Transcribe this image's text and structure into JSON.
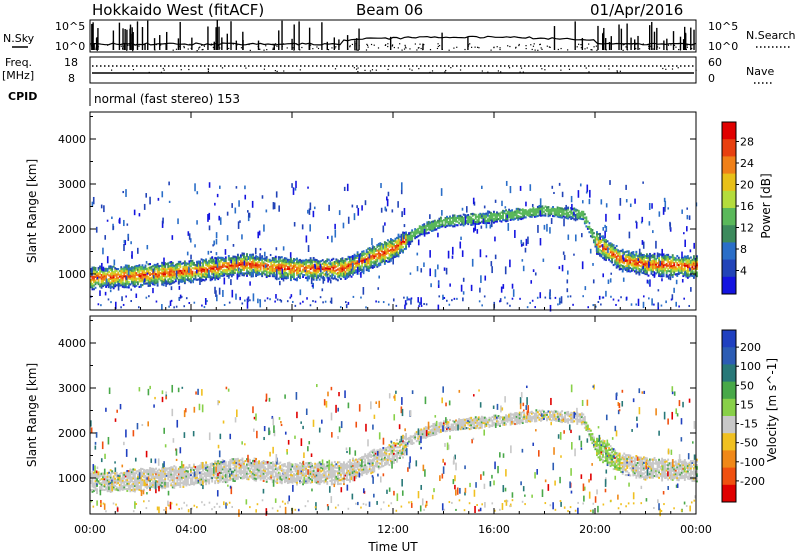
{
  "header": {
    "radar": "Hokkaido West (fitACF)",
    "beam": "Beam 06",
    "date": "01/Apr/2016"
  },
  "noise_panel": {
    "left_label": "N.Sky",
    "right_label": "N.Search",
    "left_ticks": [
      "10^5",
      "10^0"
    ],
    "right_ticks": [
      "10^5",
      "10^0"
    ]
  },
  "freq_panel": {
    "left_label_1": "Freq.",
    "left_label_2": "[MHz]",
    "right_label": "Nave",
    "left_ticks": [
      "18",
      "8"
    ],
    "right_ticks": [
      "60",
      "0"
    ]
  },
  "cpid": {
    "label": "CPID",
    "text": "normal (fast stereo) 153"
  },
  "chart_data": [
    {
      "type": "heatmap",
      "title": "Power",
      "ylabel": "Slant Range [km]",
      "xlabel": "Time UT",
      "x_range_hours": [
        0,
        24
      ],
      "ylim": [
        200,
        4600
      ],
      "y_ticks": [
        1000,
        2000,
        3000,
        4000
      ],
      "x_tick_labels": [
        "00:00",
        "04:00",
        "08:00",
        "12:00",
        "16:00",
        "20:00",
        "00:00"
      ],
      "colorbar_label": "Power [dB]",
      "colorbar_ticks": [
        "4",
        "8",
        "12",
        "16",
        "20",
        "24",
        "28"
      ],
      "colorbar_colors": [
        "#1414e0",
        "#2244b8",
        "#2a6ec8",
        "#3c8a5c",
        "#5ab85a",
        "#b4dc3c",
        "#e8c018",
        "#f08018",
        "#e84010",
        "#e00000"
      ],
      "main_echo_band": {
        "x": [
          0,
          2,
          4,
          6,
          8,
          10,
          12,
          13,
          14,
          16,
          18,
          19.5,
          20,
          21,
          22,
          24
        ],
        "range_km": [
          900,
          950,
          1050,
          1200,
          1100,
          1100,
          1550,
          1950,
          2150,
          2250,
          2400,
          2300,
          1700,
          1300,
          1200,
          1150
        ]
      }
    },
    {
      "type": "heatmap",
      "title": "Velocity",
      "ylabel": "Slant Range [km]",
      "xlabel": "Time UT",
      "x_range_hours": [
        0,
        24
      ],
      "ylim": [
        200,
        4600
      ],
      "y_ticks": [
        1000,
        2000,
        3000,
        4000
      ],
      "x_tick_labels": [
        "00:00",
        "04:00",
        "08:00",
        "12:00",
        "16:00",
        "20:00",
        "00:00"
      ],
      "colorbar_label": "Velocity [m s^-1]",
      "colorbar_ticks": [
        "200",
        "100",
        "50",
        "15",
        "-15",
        "-50",
        "-100",
        "-200"
      ],
      "colorbar_colors": [
        "#2040c0",
        "#2c5cb4",
        "#287878",
        "#48a848",
        "#88d048",
        "#c8c8c8",
        "#f0c020",
        "#f08818",
        "#f05010",
        "#e00000"
      ]
    }
  ],
  "x_axis": {
    "label": "Time UT",
    "tick_labels": [
      "00:00",
      "04:00",
      "08:00",
      "12:00",
      "16:00",
      "20:00",
      "00:00"
    ]
  }
}
